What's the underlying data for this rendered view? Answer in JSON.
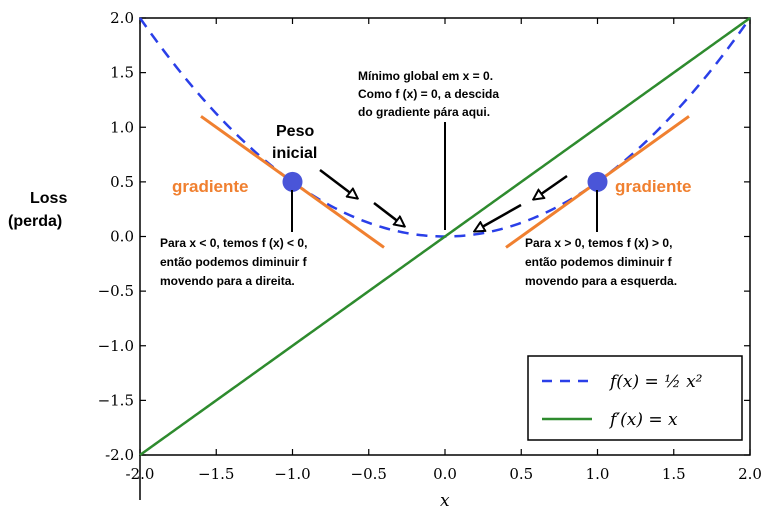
{
  "chart_data": {
    "type": "line",
    "xlim": [
      -2.0,
      2.0
    ],
    "ylim": [
      -2.0,
      2.0
    ],
    "x_ticks": [
      "-2.0",
      "−1.5",
      "−1.0",
      "−0.5",
      "0.0",
      "0.5",
      "1.0",
      "1.5",
      "2.0"
    ],
    "x_tick_values": [
      -2.0,
      -1.5,
      -1.0,
      -0.5,
      0.0,
      0.5,
      1.0,
      1.5,
      2.0
    ],
    "y_ticks": [
      "2.0",
      "1.5",
      "1.0",
      "0.5",
      "0.0",
      "−0.5",
      "−1.0",
      "−1.5",
      "-2.0"
    ],
    "y_tick_values": [
      2.0,
      1.5,
      1.0,
      0.5,
      0.0,
      -0.5,
      -1.0,
      -1.5,
      -2.0
    ],
    "xlabel": "x",
    "ylabel_line1": "Loss",
    "ylabel_line2": "(perda)",
    "series": [
      {
        "name": "f(x) = ½ x²",
        "formula": "0.5*x^2",
        "style": "dashed",
        "color": "#2a3fe8"
      },
      {
        "name": "f′(x) = x",
        "formula": "x",
        "style": "solid",
        "color": "#2e8b2e"
      }
    ],
    "legend_position": "bottom-right",
    "points": [
      {
        "x": -1.0,
        "y": 0.5,
        "color": "#4a55d8"
      },
      {
        "x": 1.0,
        "y": 0.5,
        "color": "#4a55d8"
      }
    ],
    "tangent_color": "#f08030",
    "annotations": {
      "gradient_left": "gradiente",
      "gradient_right": "gradiente",
      "peso_line1": "Peso",
      "peso_line2": "inicial",
      "min_line1": "Mínimo global em x = 0.",
      "min_line2": "Como f (x) = 0, a descida",
      "min_line3": "do gradiente pára aqui.",
      "left_line1": "Para x < 0, temos f (x) < 0,",
      "left_line2": "então podemos diminuir f",
      "left_line3": "movendo para a direita.",
      "right_line1": "Para x > 0, temos f (x) > 0,",
      "right_line2": "então podemos diminuir f",
      "right_line3": "movendo para a esquerda."
    }
  }
}
